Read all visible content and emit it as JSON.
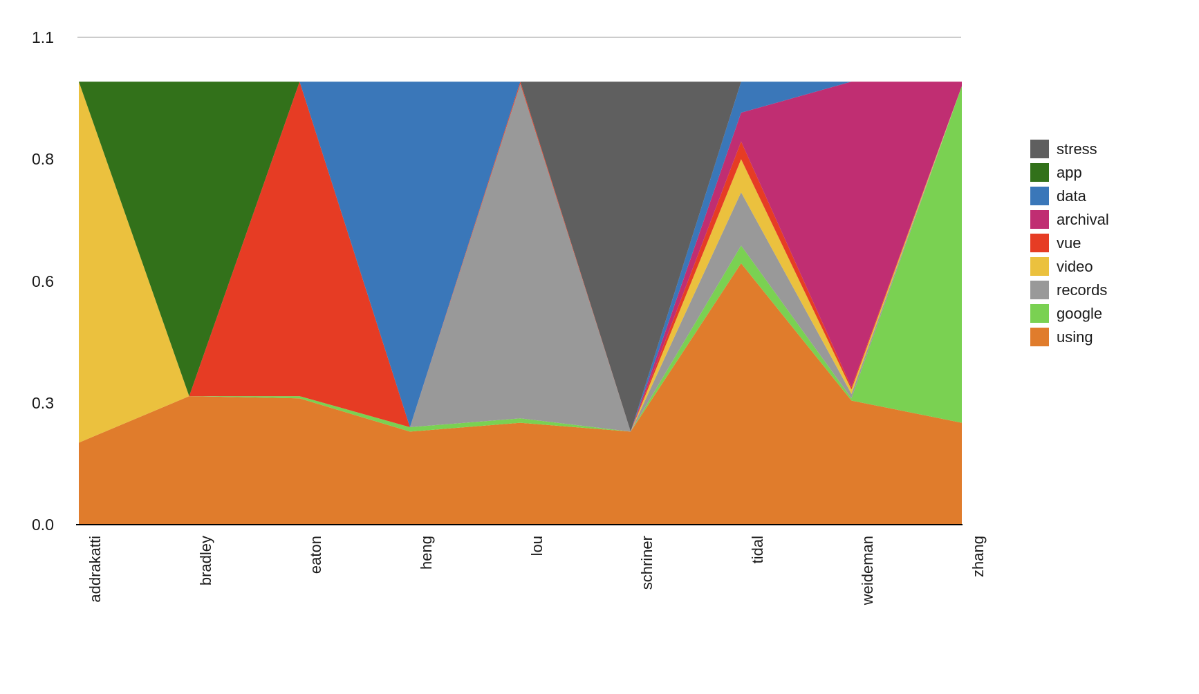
{
  "chart_data": {
    "type": "area",
    "stacked": true,
    "title": "",
    "xlabel": "",
    "ylabel": "",
    "grid": "top-line-only",
    "legend_position": "right",
    "categories": [
      "addrakatti",
      "bradley",
      "eaton",
      "heng",
      "lou",
      "schriner",
      "tidal",
      "weideman",
      "zhang"
    ],
    "y_axis": {
      "min": 0,
      "max": 1.1,
      "ticks": [
        {
          "value": 0.0,
          "label": "0.0"
        },
        {
          "value": 0.275,
          "label": "0.3"
        },
        {
          "value": 0.55,
          "label": "0.6"
        },
        {
          "value": 0.825,
          "label": "0.8"
        },
        {
          "value": 1.1,
          "label": "1.1"
        }
      ]
    },
    "stacking_note": "series listed in legend order (top entry first); stacked bottom-to-top in reverse of this list, i.e. 'using' is the bottom band",
    "series": [
      {
        "name": "stress",
        "color": "#5f5f5f",
        "values": [
          0,
          0,
          0,
          0,
          0,
          0.79,
          0,
          0,
          0
        ]
      },
      {
        "name": "app",
        "color": "#32711a",
        "values": [
          0,
          0.71,
          0,
          0,
          0,
          0,
          0,
          0,
          0
        ]
      },
      {
        "name": "data",
        "color": "#3a77b9",
        "values": [
          0,
          0,
          0,
          0.78,
          0,
          0,
          0.07,
          0,
          0
        ]
      },
      {
        "name": "archival",
        "color": "#c02e72",
        "values": [
          0,
          0,
          0,
          0,
          0,
          0,
          0.065,
          0.69,
          0.01
        ]
      },
      {
        "name": "vue",
        "color": "#e63c24",
        "values": [
          0,
          0,
          0.71,
          0,
          0.005,
          0,
          0.04,
          0.005,
          0
        ]
      },
      {
        "name": "video",
        "color": "#ebc13e",
        "values": [
          0.815,
          0,
          0,
          0,
          0,
          0,
          0.075,
          0.01,
          0
        ]
      },
      {
        "name": "records",
        "color": "#999999",
        "values": [
          0,
          0,
          0,
          0,
          0.755,
          0,
          0.12,
          0.01,
          0
        ]
      },
      {
        "name": "google",
        "color": "#7ad152",
        "values": [
          0,
          0,
          0.005,
          0.01,
          0.01,
          0,
          0.04,
          0.005,
          0.76
        ]
      },
      {
        "name": "using",
        "color": "#e07c2c",
        "values": [
          0.185,
          0.29,
          0.285,
          0.21,
          0.23,
          0.21,
          0.59,
          0.28,
          0.23
        ]
      }
    ],
    "colors": {
      "axis_line": "#000000",
      "grid_line": "#cccccc",
      "tick_text": "#1a1a1a"
    }
  }
}
